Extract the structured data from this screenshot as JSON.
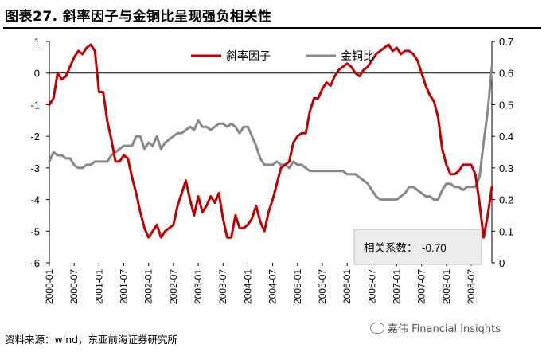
{
  "header": {
    "title": "图表27. 斜率因子与金铜比呈现强负相关性"
  },
  "footer": {
    "source": "资料来源：wind，东亚前海证券研究所",
    "watermark": "嘉伟 Financial Insights"
  },
  "annotation": {
    "label": "相关系数：",
    "value": "-0.70"
  },
  "chart_data": {
    "type": "line",
    "title": "斜率因子与金铜比呈现强负相关性",
    "x_tick_labels": [
      "2000-01",
      "2000-07",
      "2001-01",
      "2001-07",
      "2002-01",
      "2002-07",
      "2003-01",
      "2003-07",
      "2004-01",
      "2004-07",
      "2005-01",
      "2005-07",
      "2006-01",
      "2006-07",
      "2007-01",
      "2007-07",
      "2008-01",
      "2008-07"
    ],
    "x_range_months": [
      0,
      107
    ],
    "left_axis": {
      "ylim": [
        -6,
        1
      ],
      "ticks": [
        -6,
        -5,
        -4,
        -3,
        -2,
        -1,
        0,
        1
      ]
    },
    "right_axis": {
      "ylim": [
        0,
        0.7
      ],
      "ticks": [
        0,
        0.1,
        0.2,
        0.3,
        0.4,
        0.5,
        0.6,
        0.7
      ]
    },
    "legend": {
      "position": "top-center"
    },
    "series": [
      {
        "name": "斜率因子",
        "axis": "left",
        "color": "#c00000",
        "points": [
          [
            0,
            -1.0
          ],
          [
            1,
            -0.8
          ],
          [
            2,
            0.0
          ],
          [
            3,
            -0.2
          ],
          [
            4,
            -0.1
          ],
          [
            5,
            0.2
          ],
          [
            6,
            0.5
          ],
          [
            7,
            0.7
          ],
          [
            8,
            0.6
          ],
          [
            9,
            0.8
          ],
          [
            10,
            0.9
          ],
          [
            11,
            0.7
          ],
          [
            12,
            -0.6
          ],
          [
            13,
            -0.6
          ],
          [
            14,
            -1.5
          ],
          [
            15,
            -2.1
          ],
          [
            16,
            -2.8
          ],
          [
            17,
            -2.8
          ],
          [
            18,
            -2.6
          ],
          [
            19,
            -2.7
          ],
          [
            20,
            -3.3
          ],
          [
            21,
            -3.8
          ],
          [
            22,
            -4.4
          ],
          [
            23,
            -4.9
          ],
          [
            24,
            -5.2
          ],
          [
            25,
            -5.0
          ],
          [
            26,
            -4.8
          ],
          [
            27,
            -5.2
          ],
          [
            28,
            -5.0
          ],
          [
            29,
            -4.9
          ],
          [
            30,
            -4.8
          ],
          [
            31,
            -4.2
          ],
          [
            32,
            -3.8
          ],
          [
            33,
            -3.4
          ],
          [
            34,
            -4.0
          ],
          [
            35,
            -4.5
          ],
          [
            36,
            -3.9
          ],
          [
            37,
            -4.4
          ],
          [
            38,
            -4.2
          ],
          [
            39,
            -3.9
          ],
          [
            40,
            -4.1
          ],
          [
            41,
            -3.8
          ],
          [
            42,
            -4.6
          ],
          [
            43,
            -5.2
          ],
          [
            44,
            -5.2
          ],
          [
            45,
            -4.5
          ],
          [
            46,
            -4.9
          ],
          [
            47,
            -4.9
          ],
          [
            48,
            -4.8
          ],
          [
            49,
            -4.6
          ],
          [
            50,
            -4.2
          ],
          [
            51,
            -4.7
          ],
          [
            52,
            -5.0
          ],
          [
            53,
            -4.4
          ],
          [
            54,
            -4.0
          ],
          [
            55,
            -3.5
          ],
          [
            56,
            -3.0
          ],
          [
            57,
            -2.9
          ],
          [
            58,
            -2.8
          ],
          [
            59,
            -2.2
          ],
          [
            60,
            -2.0
          ],
          [
            61,
            -1.9
          ],
          [
            62,
            -1.9
          ],
          [
            63,
            -1.2
          ],
          [
            64,
            -0.8
          ],
          [
            65,
            -0.8
          ],
          [
            66,
            -0.5
          ],
          [
            67,
            -0.3
          ],
          [
            68,
            -0.4
          ],
          [
            69,
            -0.1
          ],
          [
            70,
            0.1
          ],
          [
            71,
            0.2
          ],
          [
            72,
            0.3
          ],
          [
            73,
            0.2
          ],
          [
            74,
            0.0
          ],
          [
            75,
            -0.1
          ],
          [
            76,
            0.1
          ],
          [
            77,
            0.2
          ],
          [
            78,
            0.4
          ],
          [
            79,
            0.6
          ],
          [
            80,
            0.7
          ],
          [
            81,
            0.8
          ],
          [
            82,
            0.9
          ],
          [
            83,
            0.7
          ],
          [
            84,
            0.8
          ],
          [
            85,
            0.6
          ],
          [
            86,
            0.7
          ],
          [
            87,
            0.7
          ],
          [
            88,
            0.6
          ],
          [
            89,
            0.4
          ],
          [
            90,
            0.0
          ],
          [
            91,
            -0.4
          ],
          [
            92,
            -0.7
          ],
          [
            93,
            -0.9
          ],
          [
            94,
            -1.4
          ],
          [
            95,
            -2.4
          ],
          [
            96,
            -2.9
          ],
          [
            97,
            -3.2
          ],
          [
            98,
            -3.2
          ],
          [
            99,
            -3.1
          ],
          [
            100,
            -2.9
          ],
          [
            101,
            -2.9
          ],
          [
            102,
            -2.9
          ],
          [
            103,
            -3.2
          ],
          [
            104,
            -4.1
          ],
          [
            105,
            -5.2
          ],
          [
            106,
            -4.5
          ],
          [
            107,
            -3.6
          ]
        ]
      },
      {
        "name": "金铜比",
        "axis": "right",
        "color": "#888888",
        "points": [
          [
            0,
            0.32
          ],
          [
            1,
            0.35
          ],
          [
            2,
            0.34
          ],
          [
            3,
            0.34
          ],
          [
            4,
            0.33
          ],
          [
            5,
            0.33
          ],
          [
            6,
            0.31
          ],
          [
            7,
            0.3
          ],
          [
            8,
            0.3
          ],
          [
            9,
            0.31
          ],
          [
            10,
            0.31
          ],
          [
            11,
            0.32
          ],
          [
            12,
            0.32
          ],
          [
            13,
            0.32
          ],
          [
            14,
            0.32
          ],
          [
            15,
            0.34
          ],
          [
            16,
            0.35
          ],
          [
            17,
            0.36
          ],
          [
            18,
            0.37
          ],
          [
            19,
            0.37
          ],
          [
            20,
            0.37
          ],
          [
            21,
            0.4
          ],
          [
            22,
            0.4
          ],
          [
            23,
            0.36
          ],
          [
            24,
            0.38
          ],
          [
            25,
            0.37
          ],
          [
            26,
            0.4
          ],
          [
            27,
            0.36
          ],
          [
            28,
            0.38
          ],
          [
            29,
            0.39
          ],
          [
            30,
            0.4
          ],
          [
            31,
            0.41
          ],
          [
            32,
            0.41
          ],
          [
            33,
            0.42
          ],
          [
            34,
            0.43
          ],
          [
            35,
            0.42
          ],
          [
            36,
            0.45
          ],
          [
            37,
            0.43
          ],
          [
            38,
            0.43
          ],
          [
            39,
            0.42
          ],
          [
            40,
            0.43
          ],
          [
            41,
            0.44
          ],
          [
            42,
            0.44
          ],
          [
            43,
            0.43
          ],
          [
            44,
            0.44
          ],
          [
            45,
            0.43
          ],
          [
            46,
            0.41
          ],
          [
            47,
            0.43
          ],
          [
            48,
            0.43
          ],
          [
            49,
            0.4
          ],
          [
            50,
            0.37
          ],
          [
            51,
            0.33
          ],
          [
            52,
            0.31
          ],
          [
            53,
            0.31
          ],
          [
            54,
            0.31
          ],
          [
            55,
            0.32
          ],
          [
            56,
            0.31
          ],
          [
            57,
            0.31
          ],
          [
            58,
            0.3
          ],
          [
            59,
            0.32
          ],
          [
            60,
            0.31
          ],
          [
            61,
            0.31
          ],
          [
            62,
            0.3
          ],
          [
            63,
            0.29
          ],
          [
            64,
            0.29
          ],
          [
            65,
            0.29
          ],
          [
            66,
            0.29
          ],
          [
            67,
            0.29
          ],
          [
            68,
            0.29
          ],
          [
            69,
            0.29
          ],
          [
            70,
            0.29
          ],
          [
            71,
            0.29
          ],
          [
            72,
            0.28
          ],
          [
            73,
            0.28
          ],
          [
            74,
            0.28
          ],
          [
            75,
            0.27
          ],
          [
            76,
            0.26
          ],
          [
            77,
            0.25
          ],
          [
            78,
            0.23
          ],
          [
            79,
            0.21
          ],
          [
            80,
            0.2
          ],
          [
            81,
            0.2
          ],
          [
            82,
            0.2
          ],
          [
            83,
            0.2
          ],
          [
            84,
            0.2
          ],
          [
            85,
            0.21
          ],
          [
            86,
            0.22
          ],
          [
            87,
            0.24
          ],
          [
            88,
            0.24
          ],
          [
            89,
            0.23
          ],
          [
            90,
            0.22
          ],
          [
            91,
            0.21
          ],
          [
            92,
            0.21
          ],
          [
            93,
            0.2
          ],
          [
            94,
            0.2
          ],
          [
            95,
            0.23
          ],
          [
            96,
            0.25
          ],
          [
            97,
            0.25
          ],
          [
            98,
            0.24
          ],
          [
            99,
            0.24
          ],
          [
            100,
            0.23
          ],
          [
            101,
            0.24
          ],
          [
            102,
            0.24
          ],
          [
            103,
            0.24
          ],
          [
            104,
            0.27
          ],
          [
            105,
            0.38
          ],
          [
            106,
            0.48
          ],
          [
            107,
            0.62
          ]
        ]
      }
    ]
  }
}
